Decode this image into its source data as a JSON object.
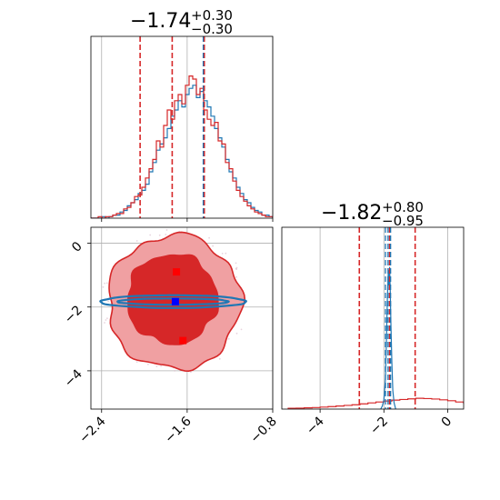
{
  "chart_data": [
    {
      "panel": "top-left",
      "type": "histogram",
      "title_value": "−1.74",
      "title_plus": "+0.30",
      "title_minus": "−0.30",
      "xlim": [
        -2.5,
        -0.8
      ],
      "ylim": [
        0,
        1
      ],
      "grid": true,
      "quantile_lines": [
        -2.04,
        -1.74,
        -1.44
      ],
      "secondary_quantile_line": -1.45,
      "x_start": -2.5,
      "bin_width": 0.034,
      "series": [
        {
          "color": "#1f77b4",
          "values": [
            0.0,
            0.0,
            0.0,
            0.01,
            0.0,
            0.01,
            0.02,
            0.02,
            0.04,
            0.05,
            0.08,
            0.1,
            0.12,
            0.16,
            0.18,
            0.22,
            0.3,
            0.36,
            0.44,
            0.48,
            0.52,
            0.58,
            0.66,
            0.7,
            0.76,
            0.72,
            0.8,
            0.84,
            0.86,
            0.78,
            0.82,
            0.76,
            0.72,
            0.66,
            0.58,
            0.52,
            0.46,
            0.38,
            0.3,
            0.26,
            0.2,
            0.16,
            0.12,
            0.1,
            0.07,
            0.05,
            0.04,
            0.02,
            0.02,
            0.01
          ]
        },
        {
          "color": "#d62728",
          "values": [
            0.0,
            0.0,
            0.01,
            0.0,
            0.01,
            0.01,
            0.02,
            0.03,
            0.03,
            0.06,
            0.07,
            0.1,
            0.14,
            0.15,
            0.2,
            0.26,
            0.32,
            0.38,
            0.5,
            0.46,
            0.6,
            0.7,
            0.64,
            0.76,
            0.8,
            0.74,
            0.86,
            0.92,
            0.9,
            0.8,
            0.84,
            0.7,
            0.64,
            0.6,
            0.62,
            0.5,
            0.48,
            0.36,
            0.32,
            0.24,
            0.18,
            0.14,
            0.11,
            0.08,
            0.06,
            0.04,
            0.03,
            0.02,
            0.01,
            0.01
          ]
        }
      ]
    },
    {
      "panel": "bottom-left",
      "type": "scatter",
      "xlim": [
        -2.5,
        -0.8
      ],
      "ylim": [
        -5.2,
        0.5
      ],
      "xticks": [
        -2.4,
        -1.6,
        -0.8
      ],
      "xtick_labels": [
        "−2.4",
        "−1.6",
        "−0.8"
      ],
      "yticks": [
        0,
        -2,
        -4
      ],
      "ytick_labels": [
        "0",
        "−2",
        "−4"
      ],
      "grid": true,
      "red_contours": [
        {
          "level": "outer",
          "fill": "#f0a0a2",
          "cx": -1.72,
          "cy": -1.85,
          "rx": 0.62,
          "ry": 2.1
        },
        {
          "level": "inner",
          "fill": "#d62728",
          "cx": -1.74,
          "cy": -1.75,
          "rx": 0.42,
          "ry": 1.4
        }
      ],
      "blue_contours": [
        {
          "level": "outer",
          "cx": -1.73,
          "cy": -1.83,
          "rx": 0.68,
          "ry": 0.2
        },
        {
          "level": "inner",
          "cx": -1.73,
          "cy": -1.83,
          "rx": 0.52,
          "ry": 0.1
        }
      ],
      "markers": [
        {
          "color": "#ff0000",
          "x": -1.7,
          "y": -0.9
        },
        {
          "color": "#ff0000",
          "x": -1.64,
          "y": -3.05
        },
        {
          "color": "#0000ff",
          "x": -1.71,
          "y": -1.83
        }
      ]
    },
    {
      "panel": "bottom-right",
      "type": "histogram",
      "title_value": "−1.82",
      "title_plus": "+0.80",
      "title_minus": "−0.95",
      "xlim": [
        -5.2,
        0.5
      ],
      "ylim": [
        0,
        1
      ],
      "xticks": [
        -4,
        -2,
        0
      ],
      "xtick_labels": [
        "−4",
        "−2",
        "0"
      ],
      "grid": true,
      "red_quantile_lines": [
        -2.77,
        -1.82,
        -1.02
      ],
      "blue_quantile_lines": [
        -1.95,
        -1.87,
        -1.79
      ],
      "red_series": {
        "color": "#d62728",
        "x_start": -5.0,
        "bin_width": 0.25,
        "values": [
          0.005,
          0.006,
          0.008,
          0.01,
          0.013,
          0.016,
          0.02,
          0.024,
          0.028,
          0.034,
          0.04,
          0.046,
          0.052,
          0.058,
          0.062,
          0.066,
          0.07,
          0.068,
          0.065,
          0.06,
          0.054,
          0.046,
          0.038,
          0.03,
          0.022,
          0.015
        ]
      },
      "blue_series": {
        "color": "#1f77b4",
        "x": [
          -2.1,
          -2.05,
          -2.0,
          -1.95,
          -1.92,
          -1.89,
          -1.86,
          -1.84,
          -1.82,
          -1.8,
          -1.78,
          -1.75,
          -1.72,
          -1.68,
          -1.63
        ],
        "values": [
          0.0,
          0.02,
          0.06,
          0.2,
          0.45,
          0.72,
          0.9,
          0.8,
          0.92,
          0.76,
          0.55,
          0.3,
          0.12,
          0.04,
          0.0
        ]
      }
    }
  ]
}
